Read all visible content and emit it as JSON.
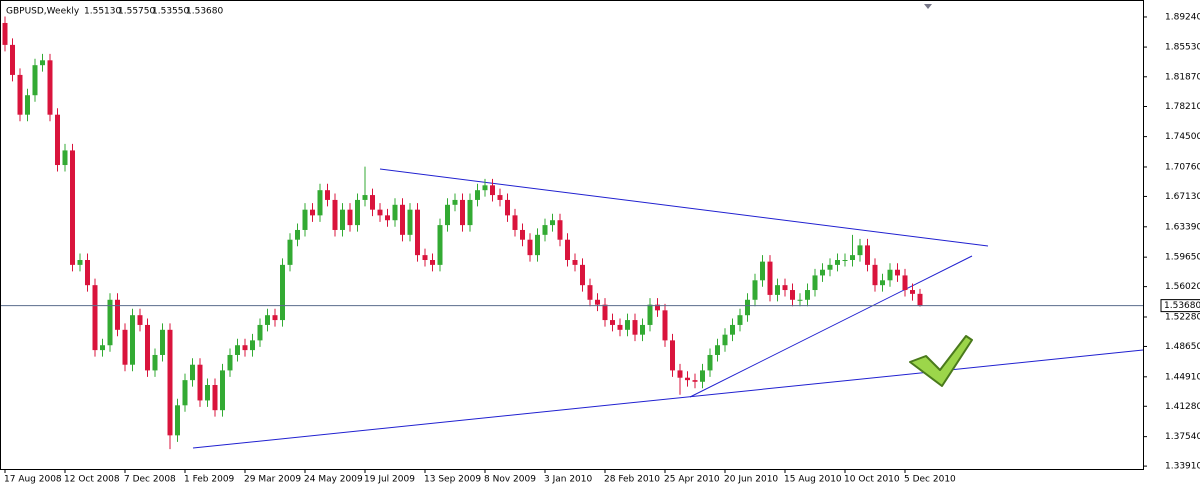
{
  "chart_data": {
    "type": "candlestick",
    "title": "GBPUSD,Weekly",
    "header_values": [
      "1.55130",
      "1.55750",
      "1.53550",
      "1.53680"
    ],
    "categories": [
      "17 Aug 2008",
      null,
      null,
      null,
      null,
      null,
      null,
      null,
      "12 Oct 2008",
      null,
      null,
      null,
      null,
      null,
      null,
      null,
      "7 Dec 2008",
      null,
      null,
      null,
      null,
      null,
      null,
      null,
      "1 Feb 2009",
      null,
      null,
      null,
      null,
      null,
      null,
      null,
      "29 Mar 2009",
      null,
      null,
      null,
      null,
      null,
      null,
      null,
      "24 May 2009",
      null,
      null,
      null,
      null,
      null,
      null,
      null,
      "19 Jul 2009",
      null,
      null,
      null,
      null,
      null,
      null,
      null,
      "13 Sep 2009",
      null,
      null,
      null,
      null,
      null,
      null,
      null,
      "8 Nov 2009",
      null,
      null,
      null,
      null,
      null,
      null,
      null,
      "3 Jan 2010",
      null,
      null,
      null,
      null,
      null,
      null,
      null,
      "28 Feb 2010",
      null,
      null,
      null,
      null,
      null,
      null,
      null,
      "25 Apr 2010",
      null,
      null,
      null,
      null,
      null,
      null,
      null,
      "20 Jun 2010",
      null,
      null,
      null,
      null,
      null,
      null,
      null,
      "15 Aug 2010",
      null,
      null,
      null,
      null,
      null,
      null,
      null,
      "10 Oct 2010",
      null,
      null,
      null,
      null,
      null,
      null,
      null,
      "5 Dec 2010",
      null,
      null
    ],
    "open": [
      1.885,
      1.858,
      1.821,
      1.772,
      1.796,
      1.833,
      1.839,
      1.772,
      1.71,
      1.728,
      1.587,
      1.593,
      1.562,
      1.482,
      1.488,
      1.544,
      1.507,
      1.464,
      1.525,
      1.513,
      1.457,
      1.476,
      1.507,
      1.377,
      1.414,
      1.445,
      1.464,
      1.42,
      1.439,
      1.408,
      1.457,
      1.476,
      1.488,
      1.482,
      1.494,
      1.513,
      1.525,
      1.519,
      1.587,
      1.618,
      1.63,
      1.655,
      1.648,
      1.679,
      1.667,
      1.63,
      1.655,
      1.636,
      1.667,
      1.673,
      1.655,
      1.648,
      1.642,
      1.661,
      1.624,
      1.655,
      1.599,
      1.593,
      1.587,
      1.636,
      1.661,
      1.667,
      1.636,
      1.667,
      1.679,
      1.685,
      1.673,
      1.667,
      1.648,
      1.63,
      1.618,
      1.599,
      1.624,
      1.636,
      1.642,
      1.618,
      1.593,
      1.587,
      1.562,
      1.544,
      1.538,
      1.519,
      1.513,
      1.507,
      1.519,
      1.501,
      1.513,
      1.538,
      1.531,
      1.494,
      1.457,
      1.448,
      1.445,
      1.443,
      1.457,
      1.476,
      1.488,
      1.501,
      1.513,
      1.525,
      1.544,
      1.568,
      1.591,
      1.55,
      1.562,
      1.556,
      1.544,
      1.544,
      1.556,
      1.574,
      1.581,
      1.587,
      1.593,
      1.593,
      1.599,
      1.611,
      1.587,
      1.562,
      1.568,
      1.581,
      1.574,
      1.556,
      1.5513
    ],
    "high": [
      1.893,
      1.866,
      1.829,
      1.804,
      1.841,
      1.847,
      1.847,
      1.78,
      1.736,
      1.736,
      1.601,
      1.601,
      1.57,
      1.496,
      1.552,
      1.552,
      1.515,
      1.533,
      1.533,
      1.521,
      1.484,
      1.515,
      1.515,
      1.422,
      1.453,
      1.472,
      1.472,
      1.447,
      1.447,
      1.465,
      1.484,
      1.496,
      1.496,
      1.502,
      1.521,
      1.533,
      1.533,
      1.595,
      1.626,
      1.638,
      1.663,
      1.663,
      1.687,
      1.687,
      1.675,
      1.663,
      1.663,
      1.675,
      1.708,
      1.681,
      1.663,
      1.656,
      1.669,
      1.669,
      1.663,
      1.663,
      1.607,
      1.601,
      1.644,
      1.669,
      1.675,
      1.675,
      1.675,
      1.687,
      1.693,
      1.693,
      1.681,
      1.675,
      1.656,
      1.638,
      1.626,
      1.632,
      1.644,
      1.65,
      1.65,
      1.626,
      1.601,
      1.595,
      1.57,
      1.552,
      1.546,
      1.527,
      1.521,
      1.527,
      1.527,
      1.521,
      1.546,
      1.546,
      1.539,
      1.502,
      1.465,
      1.456,
      1.453,
      1.465,
      1.484,
      1.496,
      1.509,
      1.521,
      1.533,
      1.552,
      1.576,
      1.599,
      1.599,
      1.57,
      1.57,
      1.564,
      1.552,
      1.564,
      1.582,
      1.589,
      1.595,
      1.601,
      1.601,
      1.624,
      1.619,
      1.619,
      1.595,
      1.576,
      1.589,
      1.589,
      1.582,
      1.564,
      1.5575
    ],
    "low": [
      1.85,
      1.813,
      1.764,
      1.764,
      1.788,
      1.825,
      1.764,
      1.702,
      1.702,
      1.579,
      1.579,
      1.554,
      1.474,
      1.474,
      1.48,
      1.499,
      1.456,
      1.456,
      1.505,
      1.449,
      1.449,
      1.468,
      1.36,
      1.369,
      1.406,
      1.437,
      1.412,
      1.412,
      1.4,
      1.4,
      1.449,
      1.468,
      1.474,
      1.474,
      1.486,
      1.505,
      1.511,
      1.511,
      1.579,
      1.61,
      1.622,
      1.64,
      1.64,
      1.659,
      1.622,
      1.622,
      1.628,
      1.628,
      1.659,
      1.647,
      1.64,
      1.634,
      1.634,
      1.616,
      1.616,
      1.591,
      1.585,
      1.579,
      1.579,
      1.628,
      1.653,
      1.628,
      1.628,
      1.659,
      1.671,
      1.665,
      1.659,
      1.64,
      1.622,
      1.61,
      1.591,
      1.591,
      1.616,
      1.628,
      1.61,
      1.585,
      1.579,
      1.554,
      1.536,
      1.53,
      1.511,
      1.505,
      1.499,
      1.499,
      1.493,
      1.493,
      1.505,
      1.523,
      1.486,
      1.449,
      1.427,
      1.437,
      1.435,
      1.435,
      1.449,
      1.468,
      1.48,
      1.493,
      1.505,
      1.517,
      1.536,
      1.56,
      1.542,
      1.542,
      1.548,
      1.536,
      1.536,
      1.536,
      1.548,
      1.566,
      1.573,
      1.579,
      1.585,
      1.585,
      1.591,
      1.579,
      1.554,
      1.554,
      1.56,
      1.566,
      1.548,
      1.543,
      1.5355
    ],
    "close": [
      1.858,
      1.821,
      1.772,
      1.796,
      1.833,
      1.839,
      1.772,
      1.71,
      1.728,
      1.587,
      1.593,
      1.562,
      1.482,
      1.488,
      1.544,
      1.507,
      1.464,
      1.525,
      1.513,
      1.457,
      1.476,
      1.507,
      1.377,
      1.414,
      1.445,
      1.464,
      1.42,
      1.439,
      1.408,
      1.457,
      1.476,
      1.488,
      1.482,
      1.494,
      1.513,
      1.525,
      1.519,
      1.587,
      1.618,
      1.63,
      1.655,
      1.648,
      1.679,
      1.667,
      1.63,
      1.655,
      1.636,
      1.667,
      1.673,
      1.655,
      1.648,
      1.642,
      1.661,
      1.624,
      1.655,
      1.599,
      1.593,
      1.587,
      1.636,
      1.661,
      1.667,
      1.636,
      1.667,
      1.679,
      1.685,
      1.673,
      1.667,
      1.648,
      1.63,
      1.618,
      1.599,
      1.624,
      1.636,
      1.642,
      1.618,
      1.593,
      1.587,
      1.562,
      1.544,
      1.538,
      1.519,
      1.513,
      1.507,
      1.519,
      1.501,
      1.513,
      1.538,
      1.531,
      1.494,
      1.457,
      1.448,
      1.445,
      1.443,
      1.457,
      1.476,
      1.488,
      1.501,
      1.513,
      1.525,
      1.544,
      1.568,
      1.591,
      1.55,
      1.562,
      1.556,
      1.544,
      1.544,
      1.556,
      1.574,
      1.581,
      1.587,
      1.593,
      1.593,
      1.599,
      1.611,
      1.587,
      1.562,
      1.568,
      1.581,
      1.574,
      1.556,
      1.5513,
      1.5368
    ],
    "up_color": "#33aa33",
    "down_color": "#d9143c",
    "ylim": [
      1.3343,
      1.9133
    ],
    "yticks": [
      {
        "value": 1.8924,
        "label": "1.89240"
      },
      {
        "value": 1.8553,
        "label": "1.85530"
      },
      {
        "value": 1.8187,
        "label": "1.81870"
      },
      {
        "value": 1.7821,
        "label": "1.78210"
      },
      {
        "value": 1.745,
        "label": "1.74500"
      },
      {
        "value": 1.7076,
        "label": "1.70760"
      },
      {
        "value": 1.6713,
        "label": "1.67130"
      },
      {
        "value": 1.6339,
        "label": "1.63390"
      },
      {
        "value": 1.5965,
        "label": "1.59650"
      },
      {
        "value": 1.5602,
        "label": "1.56020"
      },
      {
        "value": 1.5228,
        "label": "1.52280"
      },
      {
        "value": 1.4865,
        "label": "1.48650"
      },
      {
        "value": 1.4491,
        "label": "1.44910"
      },
      {
        "value": 1.4128,
        "label": "1.41280"
      },
      {
        "value": 1.3754,
        "label": "1.37540"
      },
      {
        "value": 1.3391,
        "label": "1.33910"
      }
    ],
    "last_price": {
      "value": 1.5368,
      "label": "1.53680"
    }
  }
}
